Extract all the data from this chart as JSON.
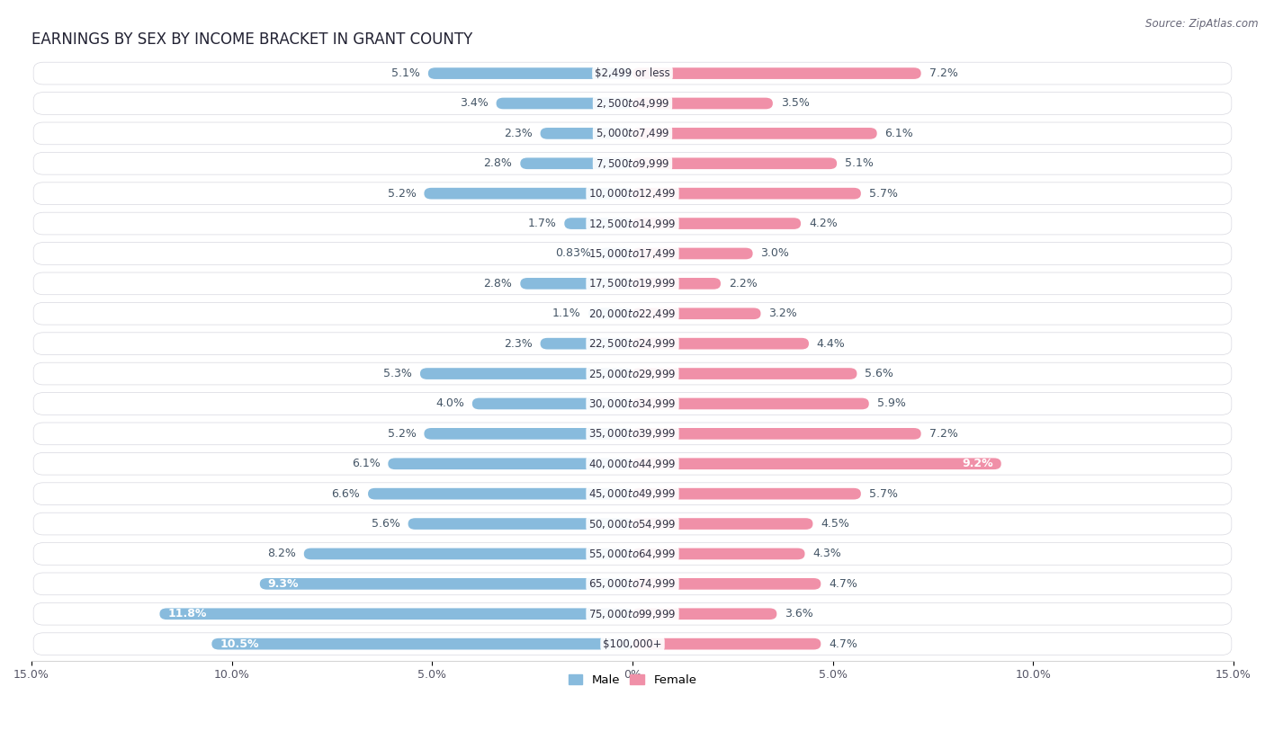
{
  "title": "EARNINGS BY SEX BY INCOME BRACKET IN GRANT COUNTY",
  "source": "Source: ZipAtlas.com",
  "categories": [
    "$2,499 or less",
    "$2,500 to $4,999",
    "$5,000 to $7,499",
    "$7,500 to $9,999",
    "$10,000 to $12,499",
    "$12,500 to $14,999",
    "$15,000 to $17,499",
    "$17,500 to $19,999",
    "$20,000 to $22,499",
    "$22,500 to $24,999",
    "$25,000 to $29,999",
    "$30,000 to $34,999",
    "$35,000 to $39,999",
    "$40,000 to $44,999",
    "$45,000 to $49,999",
    "$50,000 to $54,999",
    "$55,000 to $64,999",
    "$65,000 to $74,999",
    "$75,000 to $99,999",
    "$100,000+"
  ],
  "male_values": [
    5.1,
    3.4,
    2.3,
    2.8,
    5.2,
    1.7,
    0.83,
    2.8,
    1.1,
    2.3,
    5.3,
    4.0,
    5.2,
    6.1,
    6.6,
    5.6,
    8.2,
    9.3,
    11.8,
    10.5
  ],
  "female_values": [
    7.2,
    3.5,
    6.1,
    5.1,
    5.7,
    4.2,
    3.0,
    2.2,
    3.2,
    4.4,
    5.6,
    5.9,
    7.2,
    9.2,
    5.7,
    4.5,
    4.3,
    4.7,
    3.6,
    4.7
  ],
  "male_color": "#88bbdd",
  "female_color": "#f090a8",
  "background_color": "#ffffff",
  "row_bg_color": "#f0f0f5",
  "row_border_color": "#d8d8e0",
  "axis_limit": 15.0,
  "legend_male": "Male",
  "legend_female": "Female",
  "title_fontsize": 12,
  "label_fontsize": 9,
  "tick_fontsize": 9,
  "category_fontsize": 8.5,
  "source_fontsize": 8.5
}
